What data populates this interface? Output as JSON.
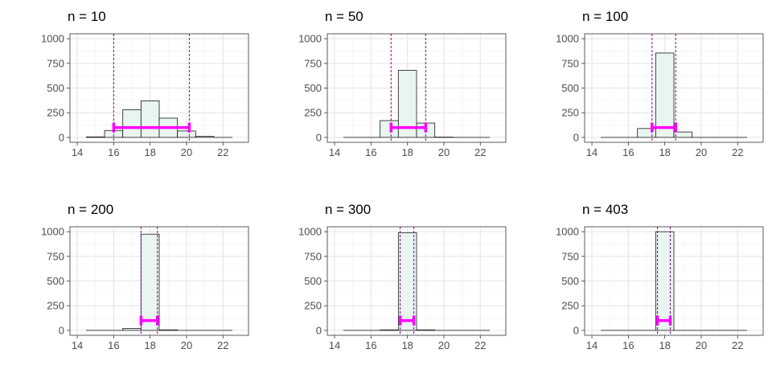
{
  "colors": {
    "bar_fill": "#e8f5f1",
    "bar_stroke": "#1a1a1a",
    "interval": "#ff00ff",
    "dashed_line": "#8b008b",
    "grid_major": "#e5e5e5",
    "grid_minor": "#f2f2f2",
    "panel_border": "#333333",
    "tick_text": "#4d4d4d"
  },
  "chart_data": [
    {
      "type": "bar",
      "title": "n = 10",
      "xlim": [
        13.6,
        23.4
      ],
      "ylim": [
        -50,
        1050
      ],
      "xticks": [
        14,
        16,
        18,
        20,
        22
      ],
      "yticks": [
        0,
        250,
        500,
        750,
        1000
      ],
      "bins": [
        {
          "x0": 14.5,
          "x1": 15.5,
          "count": 5
        },
        {
          "x0": 15.5,
          "x1": 16.5,
          "count": 70
        },
        {
          "x0": 16.5,
          "x1": 17.5,
          "count": 280
        },
        {
          "x0": 17.5,
          "x1": 18.5,
          "count": 370
        },
        {
          "x0": 18.5,
          "x1": 19.5,
          "count": 195
        },
        {
          "x0": 19.5,
          "x1": 20.5,
          "count": 65
        },
        {
          "x0": 20.5,
          "x1": 21.5,
          "count": 10
        },
        {
          "x0": 21.5,
          "x1": 22.5,
          "count": 0
        }
      ],
      "interval": {
        "lower": 16.0,
        "upper": 20.15,
        "y": 100
      },
      "dashed_lines": [
        16.0,
        20.15
      ]
    },
    {
      "type": "bar",
      "title": "n = 50",
      "xlim": [
        13.6,
        23.4
      ],
      "ylim": [
        -50,
        1050
      ],
      "xticks": [
        14,
        16,
        18,
        20,
        22
      ],
      "yticks": [
        0,
        250,
        500,
        750,
        1000
      ],
      "bins": [
        {
          "x0": 14.5,
          "x1": 15.5,
          "count": 0
        },
        {
          "x0": 15.5,
          "x1": 16.5,
          "count": 0
        },
        {
          "x0": 16.5,
          "x1": 17.5,
          "count": 170
        },
        {
          "x0": 17.5,
          "x1": 18.5,
          "count": 680
        },
        {
          "x0": 18.5,
          "x1": 19.5,
          "count": 145
        },
        {
          "x0": 19.5,
          "x1": 20.5,
          "count": 3
        },
        {
          "x0": 20.5,
          "x1": 21.5,
          "count": 0
        },
        {
          "x0": 21.5,
          "x1": 22.5,
          "count": 0
        }
      ],
      "interval": {
        "lower": 17.1,
        "upper": 19.0,
        "y": 100
      },
      "dashed_lines": [
        17.1,
        19.0
      ]
    },
    {
      "type": "bar",
      "title": "n = 100",
      "xlim": [
        13.6,
        23.4
      ],
      "ylim": [
        -50,
        1050
      ],
      "xticks": [
        14,
        16,
        18,
        20,
        22
      ],
      "yticks": [
        0,
        250,
        500,
        750,
        1000
      ],
      "bins": [
        {
          "x0": 14.5,
          "x1": 15.5,
          "count": 0
        },
        {
          "x0": 15.5,
          "x1": 16.5,
          "count": 0
        },
        {
          "x0": 16.5,
          "x1": 17.5,
          "count": 90
        },
        {
          "x0": 17.5,
          "x1": 18.5,
          "count": 855
        },
        {
          "x0": 18.5,
          "x1": 19.5,
          "count": 55
        },
        {
          "x0": 19.5,
          "x1": 20.5,
          "count": 0
        },
        {
          "x0": 20.5,
          "x1": 21.5,
          "count": 0
        },
        {
          "x0": 21.5,
          "x1": 22.5,
          "count": 0
        }
      ],
      "interval": {
        "lower": 17.3,
        "upper": 18.6,
        "y": 100
      },
      "dashed_lines": [
        17.3,
        18.6
      ]
    },
    {
      "type": "bar",
      "title": "n = 200",
      "xlim": [
        13.6,
        23.4
      ],
      "ylim": [
        -50,
        1050
      ],
      "xticks": [
        14,
        16,
        18,
        20,
        22
      ],
      "yticks": [
        0,
        250,
        500,
        750,
        1000
      ],
      "bins": [
        {
          "x0": 14.5,
          "x1": 15.5,
          "count": 0
        },
        {
          "x0": 15.5,
          "x1": 16.5,
          "count": 0
        },
        {
          "x0": 16.5,
          "x1": 17.5,
          "count": 20
        },
        {
          "x0": 17.5,
          "x1": 18.5,
          "count": 975
        },
        {
          "x0": 18.5,
          "x1": 19.5,
          "count": 5
        },
        {
          "x0": 19.5,
          "x1": 20.5,
          "count": 0
        },
        {
          "x0": 20.5,
          "x1": 21.5,
          "count": 0
        },
        {
          "x0": 21.5,
          "x1": 22.5,
          "count": 0
        }
      ],
      "interval": {
        "lower": 17.5,
        "upper": 18.4,
        "y": 100
      },
      "dashed_lines": [
        17.5,
        18.4
      ]
    },
    {
      "type": "bar",
      "title": "n = 300",
      "xlim": [
        13.6,
        23.4
      ],
      "ylim": [
        -50,
        1050
      ],
      "xticks": [
        14,
        16,
        18,
        20,
        22
      ],
      "yticks": [
        0,
        250,
        500,
        750,
        1000
      ],
      "bins": [
        {
          "x0": 14.5,
          "x1": 15.5,
          "count": 0
        },
        {
          "x0": 15.5,
          "x1": 16.5,
          "count": 0
        },
        {
          "x0": 16.5,
          "x1": 17.5,
          "count": 5
        },
        {
          "x0": 17.5,
          "x1": 18.5,
          "count": 990
        },
        {
          "x0": 18.5,
          "x1": 19.5,
          "count": 5
        },
        {
          "x0": 19.5,
          "x1": 20.5,
          "count": 0
        },
        {
          "x0": 20.5,
          "x1": 21.5,
          "count": 0
        },
        {
          "x0": 21.5,
          "x1": 22.5,
          "count": 0
        }
      ],
      "interval": {
        "lower": 17.6,
        "upper": 18.35,
        "y": 100
      },
      "dashed_lines": [
        17.6,
        18.35
      ]
    },
    {
      "type": "bar",
      "title": "n = 403",
      "xlim": [
        13.6,
        23.4
      ],
      "ylim": [
        -50,
        1050
      ],
      "xticks": [
        14,
        16,
        18,
        20,
        22
      ],
      "yticks": [
        0,
        250,
        500,
        750,
        1000
      ],
      "bins": [
        {
          "x0": 14.5,
          "x1": 15.5,
          "count": 0
        },
        {
          "x0": 15.5,
          "x1": 16.5,
          "count": 0
        },
        {
          "x0": 16.5,
          "x1": 17.5,
          "count": 0
        },
        {
          "x0": 17.5,
          "x1": 18.5,
          "count": 1000
        },
        {
          "x0": 18.5,
          "x1": 19.5,
          "count": 0
        },
        {
          "x0": 19.5,
          "x1": 20.5,
          "count": 0
        },
        {
          "x0": 20.5,
          "x1": 21.5,
          "count": 0
        },
        {
          "x0": 21.5,
          "x1": 22.5,
          "count": 0
        }
      ],
      "interval": {
        "lower": 17.6,
        "upper": 18.3,
        "y": 100
      },
      "dashed_lines": [
        17.6,
        18.3
      ]
    }
  ]
}
